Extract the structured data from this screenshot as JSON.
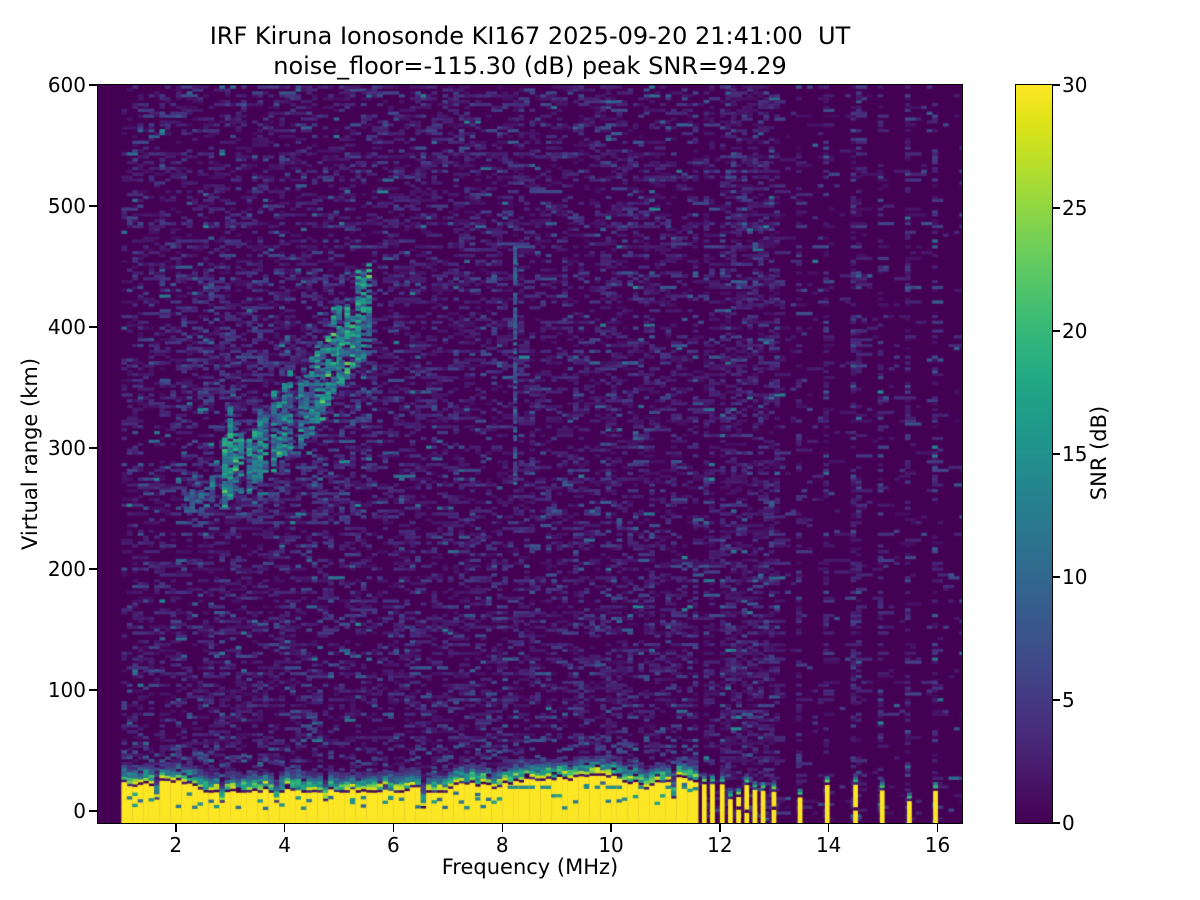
{
  "chart_data": {
    "type": "heatmap",
    "title": "IRF Kiruna Ionosonde KI167 2025-09-20 21:41:00  UT",
    "subtitle": "noise_floor=-115.30 (dB) peak SNR=94.29",
    "station_id": "KI167",
    "timestamp_ut": "2025-09-20 21:41:00",
    "noise_floor_db": -115.3,
    "peak_snr_db": 94.29,
    "xlabel": "Frequency (MHz)",
    "ylabel": "Virtual range (km)",
    "colorbar_label": "SNR (dB)",
    "colormap": "viridis",
    "xlim": [
      0.57,
      16.45
    ],
    "ylim": [
      -10,
      600
    ],
    "clim": [
      0,
      30
    ],
    "xticks": [
      2,
      4,
      6,
      8,
      10,
      12,
      14,
      16
    ],
    "yticks": [
      0,
      100,
      200,
      300,
      400,
      500,
      600
    ],
    "colorbar_ticks": [
      0,
      5,
      10,
      15,
      20,
      25,
      30
    ],
    "data": {
      "freq_start_mhz": 1.0,
      "freq_end_mhz": 16.42,
      "freq_step_mhz": 0.1,
      "range_gate_km": 2.4,
      "continuous_band_end_mhz": 11.58,
      "ground_pulse": {
        "freq_start_mhz": 1.0,
        "freq_end_mhz": 11.58,
        "top_km_min": 15,
        "top_km_max": 29,
        "deep_notch_mhz": 6.5,
        "snr_db": 30
      },
      "echo_trace_clusters": [
        {
          "f0": 2.15,
          "f1": 2.35,
          "bottom0_km": 243,
          "bottom1_km": 250,
          "height_km": 16,
          "snr_db": 10
        },
        {
          "f0": 2.42,
          "f1": 2.62,
          "bottom0_km": 247,
          "bottom1_km": 254,
          "height_km": 26,
          "snr_db": 12
        },
        {
          "f0": 2.85,
          "f1": 3.15,
          "bottom0_km": 255,
          "bottom1_km": 266,
          "height_km": 58,
          "snr_db": 16
        },
        {
          "f0": 3.3,
          "f1": 3.6,
          "bottom0_km": 266,
          "bottom1_km": 280,
          "height_km": 60,
          "snr_db": 16
        },
        {
          "f0": 3.75,
          "f1": 4.1,
          "bottom0_km": 282,
          "bottom1_km": 298,
          "height_km": 60,
          "snr_db": 15
        },
        {
          "f0": 4.25,
          "f1": 4.55,
          "bottom0_km": 300,
          "bottom1_km": 318,
          "height_km": 56,
          "snr_db": 14
        },
        {
          "f0": 4.65,
          "f1": 5.0,
          "bottom0_km": 324,
          "bottom1_km": 350,
          "height_km": 62,
          "snr_db": 16
        },
        {
          "f0": 5.0,
          "f1": 5.45,
          "bottom0_km": 350,
          "bottom1_km": 378,
          "height_km": 68,
          "snr_db": 17
        }
      ],
      "echo_halo": {
        "freq_range_mhz": [
          2.0,
          5.6
        ],
        "range_km": [
          235,
          445
        ]
      },
      "rfi_columns_mhz": [
        11.67,
        11.82,
        12.0,
        12.15,
        12.3,
        12.45,
        12.6,
        12.75,
        12.95,
        13.43,
        13.93,
        14.45,
        14.94,
        15.44,
        15.92
      ],
      "rfi_column_top_km_range": [
        8,
        22
      ],
      "vertical_artifact": {
        "freq_mhz": 8.2,
        "range_km": [
          265,
          468
        ],
        "snr_db": 9
      },
      "noise": {
        "speckle_probability_left": 0.31,
        "speckle_probability_rfi_column": 0.42,
        "speckle_probability_right_background": 0.035,
        "typical_snr_db": [
          1,
          8
        ]
      }
    }
  }
}
